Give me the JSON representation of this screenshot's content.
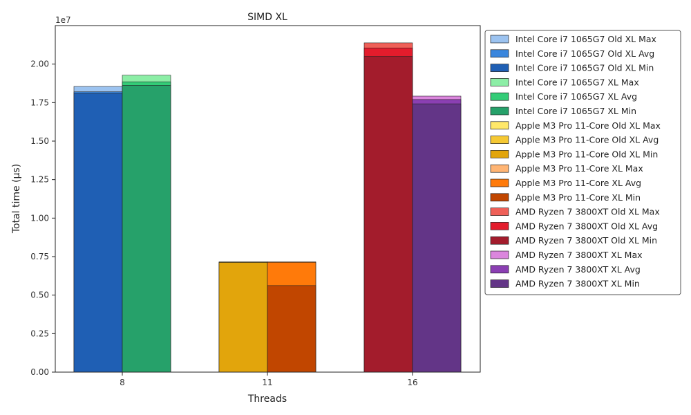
{
  "chart_data": {
    "type": "bar",
    "title": "SIMD XL",
    "xlabel": "Threads",
    "ylabel": "Total time (µs)",
    "y_scale_text": "1e7",
    "y_scale": 10000000,
    "ylim": [
      0,
      2.25
    ],
    "yticks": [
      0.0,
      0.25,
      0.5,
      0.75,
      1.0,
      1.25,
      1.5,
      1.75,
      2.0
    ],
    "ytick_labels": [
      "0.00",
      "0.25",
      "0.50",
      "0.75",
      "1.00",
      "1.25",
      "1.50",
      "1.75",
      "2.00"
    ],
    "categories": [
      "8",
      "11",
      "16"
    ],
    "legend_position": "outside-right",
    "groups": [
      {
        "category": "8",
        "bars": [
          {
            "name": "Intel Core i7 1065G7 Old XL",
            "min": 1.81,
            "avg": 1.82,
            "max": 1.855,
            "colors": {
              "min": "#1f5fb4",
              "avg": "#3a86dd",
              "max": "#9cc3f0"
            }
          },
          {
            "name": "Intel Core i7 1065G7 XL",
            "min": 1.862,
            "avg": 1.885,
            "max": 1.928,
            "colors": {
              "min": "#26a16a",
              "avg": "#33cc77",
              "max": "#8ceea6"
            }
          }
        ]
      },
      {
        "category": "11",
        "bars": [
          {
            "name": "Apple M3 Pro 11-Core Old XL",
            "min": 0.712,
            "avg": 0.714,
            "max": 0.716,
            "colors": {
              "min": "#e2a50c",
              "avg": "#f5c833",
              "max": "#ffe86a"
            }
          },
          {
            "name": "Apple M3 Pro 11-Core XL",
            "min": 0.562,
            "avg": 0.713,
            "max": 0.716,
            "colors": {
              "min": "#c14600",
              "avg": "#ff7a0a",
              "max": "#ffb574"
            }
          }
        ]
      },
      {
        "category": "16",
        "bars": [
          {
            "name": "AMD Ryzen 7 3800XT Old XL",
            "min": 2.05,
            "avg": 2.105,
            "max": 2.138,
            "colors": {
              "min": "#a31c2c",
              "avg": "#e31c2c",
              "max": "#ef6058"
            }
          },
          {
            "name": "AMD Ryzen 7 3800XT XL",
            "min": 1.742,
            "avg": 1.77,
            "max": 1.792,
            "colors": {
              "min": "#633587",
              "avg": "#8b3fb3",
              "max": "#db86dd"
            }
          }
        ]
      }
    ],
    "legend": [
      {
        "label": "Intel Core i7 1065G7 Old XL Max",
        "color": "#9cc3f0"
      },
      {
        "label": "Intel Core i7 1065G7 Old XL Avg",
        "color": "#3a86dd"
      },
      {
        "label": "Intel Core i7 1065G7 Old XL Min",
        "color": "#1f5fb4"
      },
      {
        "label": "Intel Core i7 1065G7 XL Max",
        "color": "#8ceea6"
      },
      {
        "label": "Intel Core i7 1065G7 XL Avg",
        "color": "#33cc77"
      },
      {
        "label": "Intel Core i7 1065G7 XL Min",
        "color": "#26a16a"
      },
      {
        "label": "Apple M3 Pro 11-Core Old XL Max",
        "color": "#ffe86a"
      },
      {
        "label": "Apple M3 Pro 11-Core Old XL Avg",
        "color": "#f5c833"
      },
      {
        "label": "Apple M3 Pro 11-Core Old XL Min",
        "color": "#e2a50c"
      },
      {
        "label": "Apple M3 Pro 11-Core XL Max",
        "color": "#ffb574"
      },
      {
        "label": "Apple M3 Pro 11-Core XL Avg",
        "color": "#ff7a0a"
      },
      {
        "label": "Apple M3 Pro 11-Core XL Min",
        "color": "#c14600"
      },
      {
        "label": "AMD Ryzen 7 3800XT Old XL Max",
        "color": "#ef6058"
      },
      {
        "label": "AMD Ryzen 7 3800XT Old XL Avg",
        "color": "#e31c2c"
      },
      {
        "label": "AMD Ryzen 7 3800XT Old XL Min",
        "color": "#a31c2c"
      },
      {
        "label": "AMD Ryzen 7 3800XT XL Max",
        "color": "#db86dd"
      },
      {
        "label": "AMD Ryzen 7 3800XT XL Avg",
        "color": "#8b3fb3"
      },
      {
        "label": "AMD Ryzen 7 3800XT XL Min",
        "color": "#633587"
      }
    ]
  }
}
